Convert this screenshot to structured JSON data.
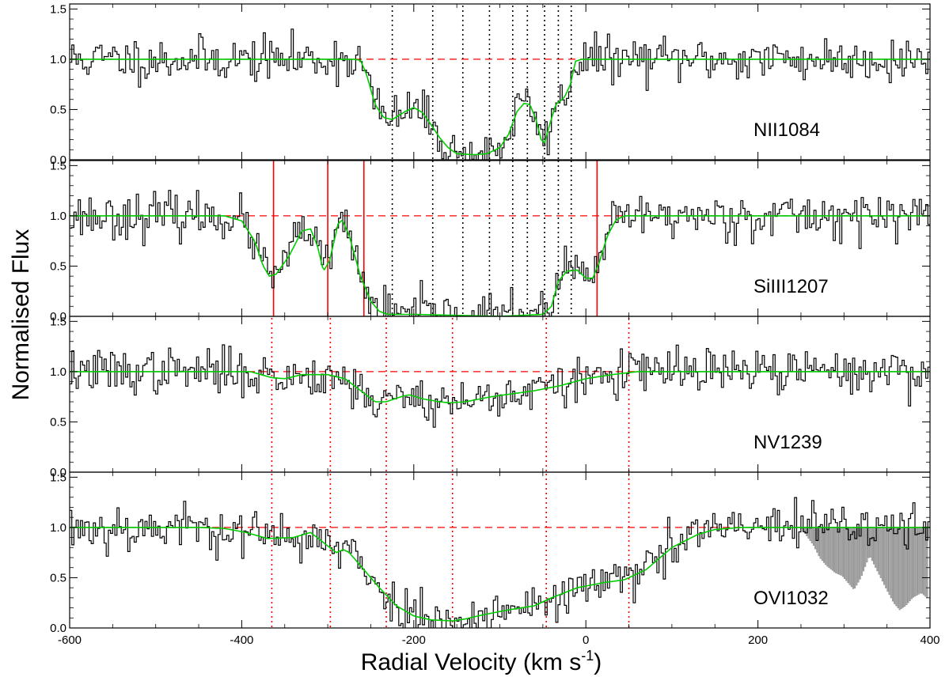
{
  "chart_data": {
    "type": "line",
    "xlabel": "Radial Velocity (km s",
    "xlabel_sup": "-1",
    "xlabel_end": ")",
    "ylabel": "Normalised Flux",
    "xlim": [
      -600,
      400
    ],
    "ylim": [
      0.0,
      1.55
    ],
    "x_ticks": [
      -600,
      -400,
      -200,
      0,
      200,
      400
    ],
    "x_tick_labels": [
      "-600",
      "-400",
      "-200",
      "0",
      "200",
      "400"
    ],
    "y_ticks": [
      0.0,
      0.5,
      1.0,
      1.5
    ],
    "y_tick_labels": [
      "0.0",
      "0.5",
      "1.0",
      "1.5"
    ],
    "continuum_level": 1.0,
    "colors": {
      "data": "#000000",
      "model": "#00cc00",
      "continuum": "#ff0000",
      "marker": "#ff0000",
      "component": "#000000",
      "blend": "#aaaaaa"
    },
    "panels": [
      {
        "label": "NII1084",
        "noise": 0.11,
        "seed": 11,
        "model": [
          [
            -600,
            1.0
          ],
          [
            -270,
            1.0
          ],
          [
            -262,
            0.99
          ],
          [
            -255,
            0.85
          ],
          [
            -245,
            0.55
          ],
          [
            -235,
            0.42
          ],
          [
            -225,
            0.4
          ],
          [
            -210,
            0.48
          ],
          [
            -200,
            0.52
          ],
          [
            -190,
            0.47
          ],
          [
            -180,
            0.35
          ],
          [
            -170,
            0.22
          ],
          [
            -160,
            0.12
          ],
          [
            -150,
            0.06
          ],
          [
            -130,
            0.05
          ],
          [
            -115,
            0.06
          ],
          [
            -100,
            0.12
          ],
          [
            -90,
            0.25
          ],
          [
            -80,
            0.48
          ],
          [
            -72,
            0.56
          ],
          [
            -65,
            0.55
          ],
          [
            -58,
            0.4
          ],
          [
            -52,
            0.2
          ],
          [
            -48,
            0.17
          ],
          [
            -42,
            0.35
          ],
          [
            -35,
            0.55
          ],
          [
            -25,
            0.62
          ],
          [
            -18,
            0.75
          ],
          [
            -12,
            0.98
          ],
          [
            -5,
            1.0
          ],
          [
            400,
            1.0
          ]
        ],
        "component_lines": [
          -225,
          -178,
          -143,
          -112,
          -85,
          -68,
          -48,
          -32,
          -17
        ],
        "component_style": "black-dotted",
        "markers": [],
        "blend": []
      },
      {
        "label": "SiIII1207",
        "noise": 0.11,
        "seed": 23,
        "model": [
          [
            -600,
            1.0
          ],
          [
            -420,
            1.0
          ],
          [
            -400,
            0.95
          ],
          [
            -385,
            0.75
          ],
          [
            -375,
            0.5
          ],
          [
            -368,
            0.4
          ],
          [
            -360,
            0.42
          ],
          [
            -345,
            0.6
          ],
          [
            -330,
            0.85
          ],
          [
            -320,
            0.87
          ],
          [
            -312,
            0.7
          ],
          [
            -305,
            0.45
          ],
          [
            -298,
            0.55
          ],
          [
            -288,
            0.92
          ],
          [
            -283,
            0.96
          ],
          [
            -275,
            0.8
          ],
          [
            -262,
            0.4
          ],
          [
            -250,
            0.15
          ],
          [
            -240,
            0.05
          ],
          [
            -230,
            0.02
          ],
          [
            -200,
            0.02
          ],
          [
            -100,
            0.0
          ],
          [
            -50,
            0.02
          ],
          [
            -40,
            0.1
          ],
          [
            -32,
            0.35
          ],
          [
            -22,
            0.45
          ],
          [
            -10,
            0.46
          ],
          [
            0,
            0.38
          ],
          [
            8,
            0.38
          ],
          [
            15,
            0.52
          ],
          [
            25,
            0.8
          ],
          [
            35,
            0.96
          ],
          [
            45,
            1.0
          ],
          [
            400,
            1.0
          ]
        ],
        "component_lines": [
          -225,
          -178,
          -143,
          -112,
          -85,
          -68,
          -48,
          -32,
          -17
        ],
        "component_style": "black-dotted",
        "markers": [
          -363,
          -300,
          -258,
          13
        ],
        "blend": []
      },
      {
        "label": "NV1239",
        "noise": 0.11,
        "seed": 37,
        "model": [
          [
            -600,
            1.0
          ],
          [
            -390,
            1.0
          ],
          [
            -365,
            0.94
          ],
          [
            -350,
            0.93
          ],
          [
            -330,
            0.97
          ],
          [
            -300,
            0.97
          ],
          [
            -280,
            0.93
          ],
          [
            -260,
            0.8
          ],
          [
            -245,
            0.7
          ],
          [
            -232,
            0.7
          ],
          [
            -215,
            0.75
          ],
          [
            -205,
            0.77
          ],
          [
            -190,
            0.73
          ],
          [
            -170,
            0.7
          ],
          [
            -158,
            0.69
          ],
          [
            -140,
            0.7
          ],
          [
            -110,
            0.75
          ],
          [
            -60,
            0.81
          ],
          [
            -30,
            0.86
          ],
          [
            0,
            0.93
          ],
          [
            30,
            0.97
          ],
          [
            60,
            1.0
          ],
          [
            400,
            1.0
          ]
        ],
        "component_lines": [
          -365,
          -297,
          -232,
          -155,
          -46,
          50
        ],
        "component_style": "red-dotted",
        "markers": [],
        "blend": []
      },
      {
        "label": "OVI1032",
        "noise": 0.12,
        "seed": 53,
        "model": [
          [
            -600,
            1.0
          ],
          [
            -450,
            1.0
          ],
          [
            -420,
            0.99
          ],
          [
            -395,
            0.95
          ],
          [
            -370,
            0.89
          ],
          [
            -340,
            0.9
          ],
          [
            -320,
            0.95
          ],
          [
            -305,
            0.85
          ],
          [
            -290,
            0.75
          ],
          [
            -282,
            0.78
          ],
          [
            -275,
            0.75
          ],
          [
            -260,
            0.6
          ],
          [
            -240,
            0.4
          ],
          [
            -220,
            0.22
          ],
          [
            -200,
            0.12
          ],
          [
            -180,
            0.08
          ],
          [
            -155,
            0.07
          ],
          [
            -140,
            0.09
          ],
          [
            -120,
            0.13
          ],
          [
            -90,
            0.18
          ],
          [
            -60,
            0.22
          ],
          [
            -40,
            0.3
          ],
          [
            -10,
            0.4
          ],
          [
            20,
            0.45
          ],
          [
            45,
            0.48
          ],
          [
            70,
            0.58
          ],
          [
            100,
            0.8
          ],
          [
            130,
            0.93
          ],
          [
            150,
            0.98
          ],
          [
            180,
            1.0
          ],
          [
            400,
            1.0
          ]
        ],
        "component_lines": [
          -365,
          -297,
          -232,
          -155,
          -46,
          50
        ],
        "component_style": "red-dotted",
        "markers": [],
        "blend": [
          [
            250,
            1.0
          ],
          [
            265,
            0.82
          ],
          [
            272,
            0.7
          ],
          [
            280,
            0.62
          ],
          [
            290,
            0.55
          ],
          [
            298,
            0.52
          ],
          [
            305,
            0.45
          ],
          [
            312,
            0.38
          ],
          [
            320,
            0.5
          ],
          [
            330,
            0.72
          ],
          [
            340,
            0.55
          ],
          [
            350,
            0.38
          ],
          [
            358,
            0.25
          ],
          [
            365,
            0.18
          ],
          [
            372,
            0.22
          ],
          [
            380,
            0.3
          ],
          [
            390,
            0.35
          ],
          [
            397,
            0.3
          ]
        ]
      }
    ]
  }
}
